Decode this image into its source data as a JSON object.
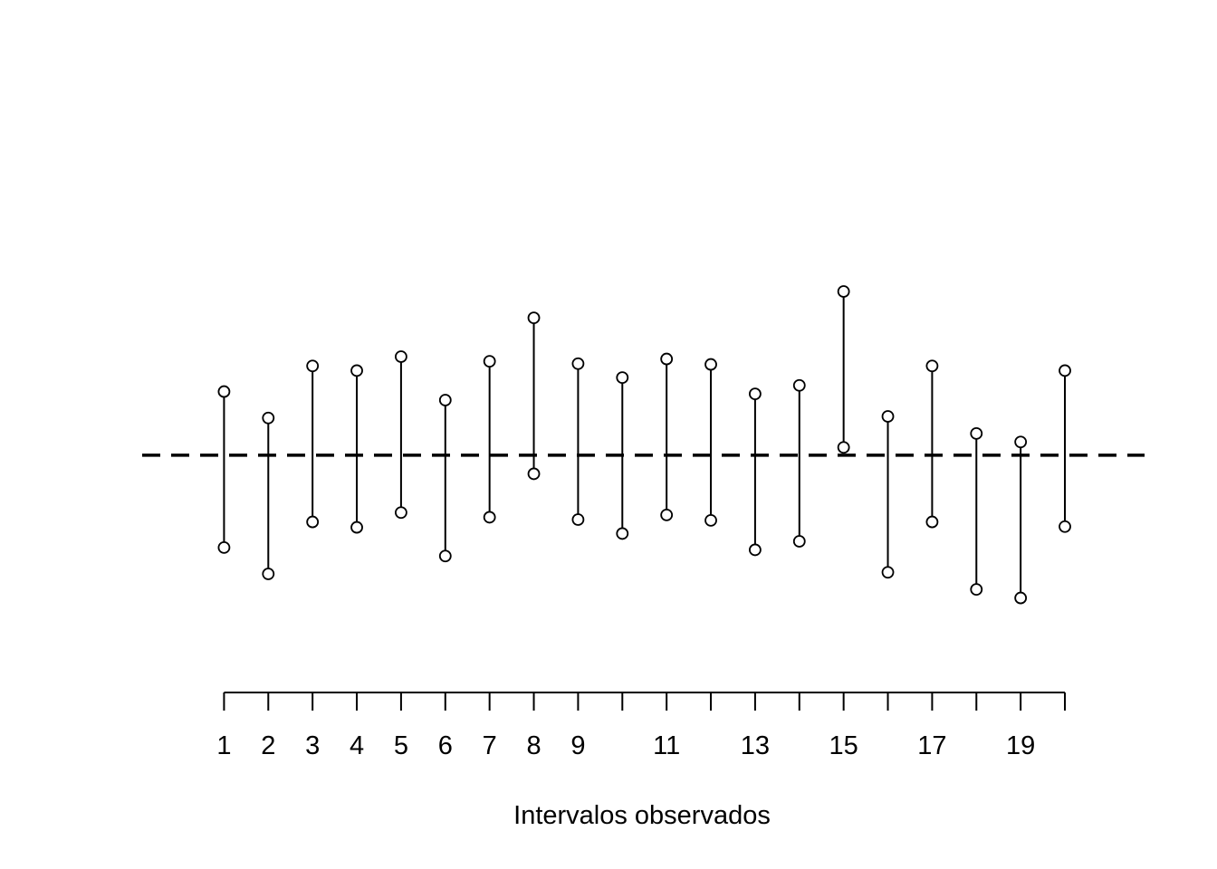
{
  "chart_data": {
    "type": "interval",
    "title": "",
    "xlabel": "Intervalos observados",
    "ylabel": "",
    "reference_line": {
      "value": 0,
      "style": "dashed",
      "color": "#000000"
    },
    "colors": {
      "line": "#000000",
      "marker_fill": "#ffffff",
      "marker_stroke": "#000000"
    },
    "x": [
      1,
      2,
      3,
      4,
      5,
      6,
      7,
      8,
      9,
      10,
      11,
      12,
      13,
      14,
      15,
      16,
      17,
      18,
      19,
      20
    ],
    "tick_values": [
      1,
      2,
      3,
      4,
      5,
      6,
      7,
      8,
      9,
      10,
      11,
      12,
      13,
      14,
      15,
      16,
      17,
      18,
      19,
      20
    ],
    "tick_labels": [
      "1",
      "2",
      "3",
      "4",
      "5",
      "6",
      "7",
      "8",
      "9",
      "",
      "11",
      "",
      "13",
      "",
      "15",
      "",
      "17",
      "",
      "19",
      ""
    ],
    "lower": [
      -1.19,
      -1.53,
      -0.86,
      -0.93,
      -0.74,
      -1.3,
      -0.8,
      -0.24,
      -0.83,
      -1.01,
      -0.77,
      -0.84,
      -1.22,
      -1.11,
      0.1,
      -1.51,
      -0.86,
      -1.73,
      -1.84,
      -0.92
    ],
    "upper": [
      0.82,
      0.48,
      1.15,
      1.09,
      1.27,
      0.71,
      1.21,
      1.77,
      1.18,
      1.0,
      1.24,
      1.17,
      0.79,
      0.9,
      2.11,
      0.5,
      1.15,
      0.28,
      0.17,
      1.09
    ],
    "xlim": [
      -0.85,
      21.8
    ],
    "ylim": [
      -3.0,
      4.0
    ]
  }
}
